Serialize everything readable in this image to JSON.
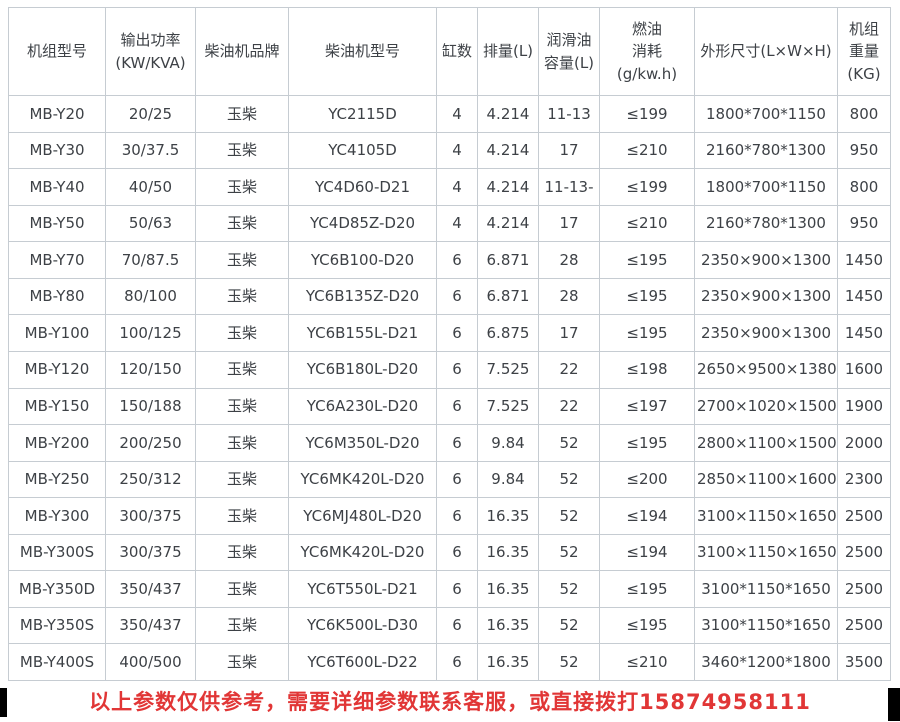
{
  "colors": {
    "table_border": "#c6ccd2",
    "table_text": "#3d4146",
    "note_red": "#e13636",
    "strip_black": "#000000"
  },
  "table": {
    "headers": [
      "机组型号",
      "输出功率\n(KW/KVA)",
      "柴油机品牌",
      "柴油机型号",
      "缸数",
      "排量(L)",
      "润滑油\n容量(L)",
      "燃油\n消耗\n(g/kw.h)",
      "外形尺寸(L×W×H)",
      "机组\n重量\n(KG)"
    ],
    "rows": [
      [
        "MB-Y20",
        "20/25",
        "玉柴",
        "YC2115D",
        "4",
        "4.214",
        "11-13",
        "≤199",
        "1800*700*1150",
        "800"
      ],
      [
        "MB-Y30",
        "30/37.5",
        "玉柴",
        "YC4105D",
        "4",
        "4.214",
        "17",
        "≤210",
        "2160*780*1300",
        "950"
      ],
      [
        "MB-Y40",
        "40/50",
        "玉柴",
        "YC4D60-D21",
        "4",
        "4.214",
        "11-13-",
        "≤199",
        "1800*700*1150",
        "800"
      ],
      [
        "MB-Y50",
        "50/63",
        "玉柴",
        "YC4D85Z-D20",
        "4",
        "4.214",
        "17",
        "≤210",
        "2160*780*1300",
        "950"
      ],
      [
        "MB-Y70",
        "70/87.5",
        "玉柴",
        "YC6B100-D20",
        "6",
        "6.871",
        "28",
        "≤195",
        "2350×900×1300",
        "1450"
      ],
      [
        "MB-Y80",
        "80/100",
        "玉柴",
        "YC6B135Z-D20",
        "6",
        "6.871",
        "28",
        "≤195",
        "2350×900×1300",
        "1450"
      ],
      [
        "MB-Y100",
        "100/125",
        "玉柴",
        "YC6B155L-D21",
        "6",
        "6.875",
        "17",
        "≤195",
        "2350×900×1300",
        "1450"
      ],
      [
        "MB-Y120",
        "120/150",
        "玉柴",
        "YC6B180L-D20",
        "6",
        "7.525",
        "22",
        "≤198",
        "2650×9500×1380",
        "1600"
      ],
      [
        "MB-Y150",
        "150/188",
        "玉柴",
        "YC6A230L-D20",
        "6",
        "7.525",
        "22",
        "≤197",
        "2700×1020×1500",
        "1900"
      ],
      [
        "MB-Y200",
        "200/250",
        "玉柴",
        "YC6M350L-D20",
        "6",
        "9.84",
        "52",
        "≤195",
        "2800×1100×1500",
        "2000"
      ],
      [
        "MB-Y250",
        "250/312",
        "玉柴",
        "YC6MK420L-D20",
        "6",
        "9.84",
        "52",
        "≤200",
        "2850×1100×1600",
        "2300"
      ],
      [
        "MB-Y300",
        "300/375",
        "玉柴",
        "YC6MJ480L-D20",
        "6",
        "16.35",
        "52",
        "≤194",
        "3100×1150×1650",
        "2500"
      ],
      [
        "MB-Y300S",
        "300/375",
        "玉柴",
        "YC6MK420L-D20",
        "6",
        "16.35",
        "52",
        "≤194",
        "3100×1150×1650",
        "2500"
      ],
      [
        "MB-Y350D",
        "350/437",
        "玉柴",
        "YC6T550L-D21",
        "6",
        "16.35",
        "52",
        "≤195",
        "3100*1150*1650",
        "2500"
      ],
      [
        "MB-Y350S",
        "350/437",
        "玉柴",
        "YC6K500L-D30",
        "6",
        "16.35",
        "52",
        "≤195",
        "3100*1150*1650",
        "2500"
      ],
      [
        "MB-Y400S",
        "400/500",
        "玉柴",
        "YC6T600L-D22",
        "6",
        "16.35",
        "52",
        "≤210",
        "3460*1200*1800",
        "3500"
      ]
    ]
  },
  "footer": {
    "note": "以上参数仅供参考，需要详细参数联系客服，或直接拨打15874958111"
  }
}
